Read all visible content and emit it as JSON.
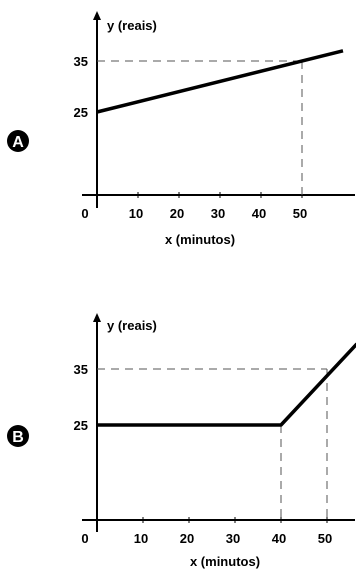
{
  "chart_data": [
    {
      "type": "line",
      "badge": "A",
      "ylabel": "y (reais)",
      "xlabel": "x (minutos)",
      "x_ticks": [
        "0",
        "10",
        "20",
        "30",
        "40",
        "50"
      ],
      "y_ticks": [
        "25",
        "35"
      ],
      "xlim": [
        0,
        60
      ],
      "series": [
        {
          "x": [
            0,
            60
          ],
          "y": [
            25,
            37
          ]
        }
      ],
      "guides": [
        {
          "x": 50,
          "y": 35
        }
      ],
      "colors": {
        "line": "#000000",
        "guide": "#555555"
      }
    },
    {
      "type": "line",
      "badge": "B",
      "ylabel": "y (reais)",
      "xlabel": "x (minutos)",
      "x_ticks": [
        "0",
        "10",
        "20",
        "30",
        "40",
        "50"
      ],
      "y_ticks": [
        "25",
        "35"
      ],
      "xlim": [
        0,
        60
      ],
      "series": [
        {
          "x": [
            0,
            40,
            56.5
          ],
          "y": [
            25,
            25,
            39.5
          ]
        }
      ],
      "guides": [
        {
          "x": 40,
          "y": 25
        },
        {
          "x": 50,
          "y": 35
        }
      ],
      "colors": {
        "line": "#000000",
        "guide": "#555555"
      }
    }
  ]
}
